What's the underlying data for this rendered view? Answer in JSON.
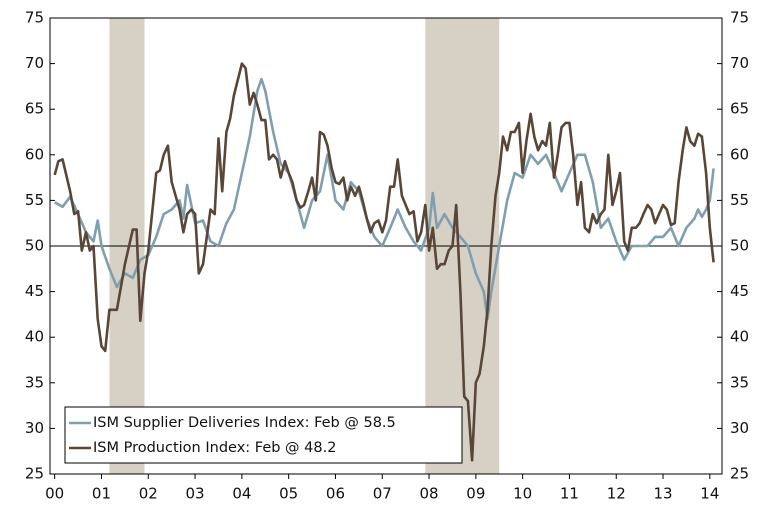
{
  "chart_data": {
    "type": "line",
    "xlim": [
      1999.9,
      2014.26
    ],
    "xticks": [
      {
        "value": 2000,
        "label": "00"
      },
      {
        "value": 2001,
        "label": "01"
      },
      {
        "value": 2002,
        "label": "02"
      },
      {
        "value": 2003,
        "label": "03"
      },
      {
        "value": 2004,
        "label": "04"
      },
      {
        "value": 2005,
        "label": "05"
      },
      {
        "value": 2006,
        "label": "06"
      },
      {
        "value": 2007,
        "label": "07"
      },
      {
        "value": 2008,
        "label": "08"
      },
      {
        "value": 2009,
        "label": "09"
      },
      {
        "value": 2010,
        "label": "10"
      },
      {
        "value": 2011,
        "label": "11"
      },
      {
        "value": 2012,
        "label": "12"
      },
      {
        "value": 2013,
        "label": "13"
      },
      {
        "value": 2014,
        "label": "14"
      }
    ],
    "ylim": [
      25,
      75
    ],
    "yticks": [
      25,
      30,
      35,
      40,
      45,
      50,
      55,
      60,
      65,
      70,
      75
    ],
    "y2lim": [
      25,
      75
    ],
    "y2ticks": [
      25,
      30,
      35,
      40,
      45,
      50,
      55,
      60,
      65,
      70,
      75
    ],
    "reference_line": 50,
    "recessions": [
      [
        2001.17,
        2001.92
      ],
      [
        2007.92,
        2009.5
      ]
    ],
    "recession_color": "#d6d1c4",
    "legend": "lower left",
    "series": [
      {
        "name": "ISM Supplier Deliveries Index: Feb @ 58.5",
        "color": "#7f9fb0",
        "x": [
          2000.0,
          2000.17,
          2000.33,
          2000.5,
          2000.67,
          2000.83,
          2000.92,
          2001.0,
          2001.17,
          2001.33,
          2001.5,
          2001.67,
          2001.83,
          2002.0,
          2002.17,
          2002.33,
          2002.5,
          2002.67,
          2002.75,
          2002.83,
          2003.0,
          2003.17,
          2003.33,
          2003.5,
          2003.67,
          2003.83,
          2004.0,
          2004.17,
          2004.33,
          2004.42,
          2004.5,
          2004.67,
          2004.83,
          2005.0,
          2005.17,
          2005.33,
          2005.5,
          2005.67,
          2005.83,
          2006.0,
          2006.17,
          2006.33,
          2006.5,
          2006.67,
          2006.83,
          2007.0,
          2007.17,
          2007.33,
          2007.5,
          2007.67,
          2007.83,
          2008.0,
          2008.08,
          2008.17,
          2008.33,
          2008.5,
          2008.67,
          2008.83,
          2009.0,
          2009.17,
          2009.25,
          2009.33,
          2009.5,
          2009.67,
          2009.83,
          2010.0,
          2010.17,
          2010.33,
          2010.5,
          2010.67,
          2010.83,
          2011.0,
          2011.17,
          2011.33,
          2011.5,
          2011.67,
          2011.83,
          2012.0,
          2012.17,
          2012.33,
          2012.5,
          2012.67,
          2012.83,
          2013.0,
          2013.17,
          2013.33,
          2013.5,
          2013.67,
          2013.75,
          2013.83,
          2013.92,
          2014.0,
          2014.08
        ],
        "values": [
          54.8,
          54.3,
          55.4,
          53.5,
          51.5,
          50.5,
          52.8,
          50,
          47.5,
          45.5,
          47,
          46.5,
          48.5,
          49,
          51,
          53.5,
          54,
          55,
          53,
          56.7,
          52.5,
          52.8,
          50.5,
          50,
          52.5,
          54,
          58,
          62,
          67,
          68.3,
          67,
          62.5,
          59,
          58,
          55,
          52,
          55,
          56,
          60,
          55,
          54,
          57,
          56,
          53,
          51,
          50,
          52,
          54,
          52,
          50.5,
          49.5,
          52,
          55.8,
          52,
          53.5,
          52,
          51,
          50,
          47,
          45,
          42,
          45,
          50,
          55,
          58,
          57.5,
          60,
          59,
          60,
          58,
          56,
          58,
          60,
          60,
          57,
          52,
          53,
          50.5,
          48.5,
          50,
          50,
          50,
          51,
          51,
          52,
          50,
          52,
          53,
          54,
          53.2,
          54,
          55,
          58.5
        ]
      },
      {
        "name": "ISM Production Index: Feb @ 48.2",
        "color": "#5a4636",
        "x": [
          2000.0,
          2000.08,
          2000.17,
          2000.33,
          2000.42,
          2000.5,
          2000.58,
          2000.67,
          2000.75,
          2000.83,
          2000.92,
          2001.0,
          2001.08,
          2001.17,
          2001.25,
          2001.33,
          2001.5,
          2001.67,
          2001.75,
          2001.83,
          2001.92,
          2002.0,
          2002.17,
          2002.25,
          2002.33,
          2002.42,
          2002.5,
          2002.67,
          2002.75,
          2002.83,
          2002.92,
          2003.0,
          2003.08,
          2003.17,
          2003.25,
          2003.33,
          2003.42,
          2003.5,
          2003.58,
          2003.67,
          2003.75,
          2003.83,
          2004.0,
          2004.08,
          2004.17,
          2004.25,
          2004.33,
          2004.42,
          2004.5,
          2004.58,
          2004.67,
          2004.75,
          2004.83,
          2004.92,
          2005.0,
          2005.08,
          2005.17,
          2005.25,
          2005.33,
          2005.42,
          2005.5,
          2005.58,
          2005.67,
          2005.75,
          2005.83,
          2005.92,
          2006.0,
          2006.08,
          2006.17,
          2006.25,
          2006.33,
          2006.42,
          2006.5,
          2006.58,
          2006.67,
          2006.75,
          2006.83,
          2006.92,
          2007.0,
          2007.08,
          2007.17,
          2007.25,
          2007.33,
          2007.42,
          2007.5,
          2007.58,
          2007.67,
          2007.75,
          2007.83,
          2007.92,
          2008.0,
          2008.08,
          2008.17,
          2008.25,
          2008.33,
          2008.42,
          2008.5,
          2008.58,
          2008.67,
          2008.75,
          2008.83,
          2008.92,
          2009.0,
          2009.08,
          2009.17,
          2009.25,
          2009.33,
          2009.42,
          2009.5,
          2009.58,
          2009.67,
          2009.75,
          2009.83,
          2009.92,
          2010.0,
          2010.08,
          2010.17,
          2010.25,
          2010.33,
          2010.42,
          2010.5,
          2010.58,
          2010.67,
          2010.75,
          2010.83,
          2010.92,
          2011.0,
          2011.08,
          2011.17,
          2011.25,
          2011.33,
          2011.42,
          2011.5,
          2011.58,
          2011.67,
          2011.75,
          2011.83,
          2011.92,
          2012.0,
          2012.08,
          2012.17,
          2012.25,
          2012.33,
          2012.42,
          2012.5,
          2012.58,
          2012.67,
          2012.75,
          2012.83,
          2013.0,
          2013.08,
          2013.17,
          2013.25,
          2013.33,
          2013.42,
          2013.5,
          2013.58,
          2013.67,
          2013.75,
          2013.83,
          2013.92,
          2014.0,
          2014.08
        ],
        "values": [
          57.8,
          59.3,
          59.5,
          56,
          53.5,
          53.8,
          49.5,
          51.5,
          49.5,
          50,
          42,
          39,
          38.5,
          43,
          43,
          43,
          48,
          51.8,
          51.8,
          41.8,
          47,
          49.5,
          58,
          58.3,
          60,
          61,
          57,
          54,
          51.5,
          53.5,
          54,
          53.5,
          47,
          48,
          51,
          54,
          53.5,
          61.8,
          56,
          62.5,
          64,
          66.5,
          70,
          69.5,
          65.5,
          66.8,
          65.5,
          63.8,
          63.8,
          59.5,
          60,
          59.5,
          57.5,
          59.3,
          58,
          57,
          55,
          54.2,
          54.5,
          56,
          57.5,
          55,
          62.5,
          62.2,
          61,
          58.5,
          57,
          56.8,
          57.5,
          55,
          56.5,
          55.5,
          56.5,
          55,
          53,
          51.5,
          52.5,
          52.8,
          51.5,
          52.8,
          56.5,
          56.5,
          59.5,
          55.5,
          54.5,
          53.5,
          53.8,
          50.5,
          51.5,
          54.5,
          49.5,
          52,
          47.5,
          48,
          48,
          49.5,
          50,
          54.5,
          45,
          33.5,
          33,
          26.5,
          35,
          36,
          39,
          43,
          50,
          55.5,
          58,
          62,
          60.5,
          62.5,
          62.5,
          63.5,
          58,
          61.5,
          64.5,
          62,
          60.5,
          61.5,
          61,
          63.5,
          57.5,
          60,
          63,
          63.5,
          63.5,
          60,
          54.5,
          57,
          52,
          51.5,
          53.5,
          52.5,
          53.5,
          54,
          60,
          54.5,
          56,
          58,
          50.5,
          49.5,
          52,
          52,
          52.5,
          53.5,
          54.5,
          54,
          52.5,
          54.5,
          54,
          52.3,
          52.5,
          57,
          60.5,
          63,
          61.5,
          61,
          62.3,
          62,
          58,
          52,
          48.2
        ]
      }
    ]
  }
}
